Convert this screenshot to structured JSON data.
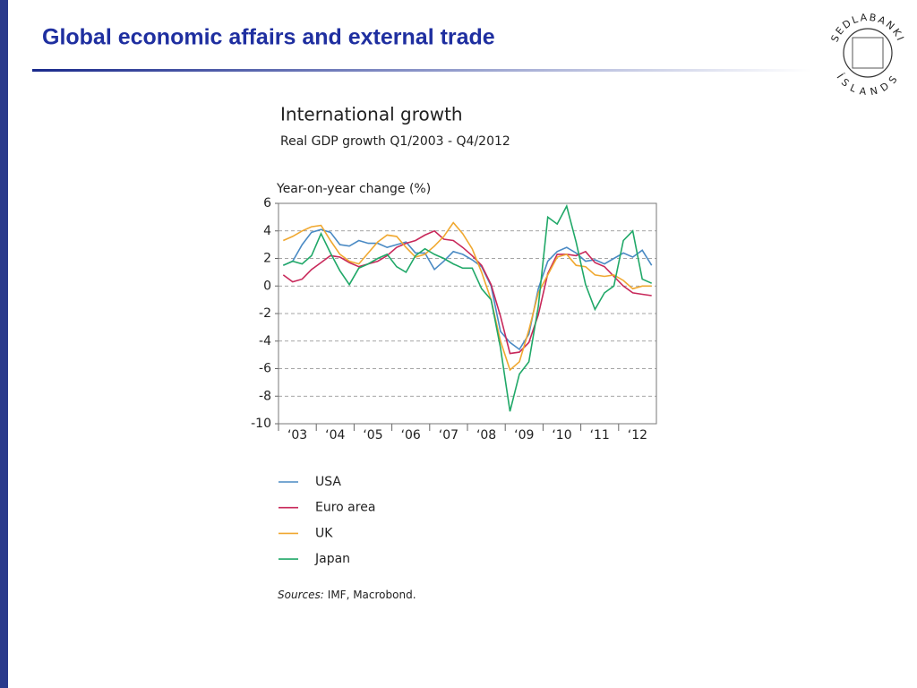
{
  "slide_title": "Global economic affairs and external trade",
  "logo": {
    "top": "SEDLABANKI",
    "bottom": "ÍSLANDS"
  },
  "chart_data": {
    "type": "line",
    "title": "International growth",
    "subtitle": "Real GDP growth Q1/2003 - Q4/2012",
    "y_label": "Year-on-year change (%)",
    "categories": [
      "‘03",
      null,
      null,
      null,
      "‘04",
      null,
      null,
      null,
      "‘05",
      null,
      null,
      null,
      "‘06",
      null,
      null,
      null,
      "‘07",
      null,
      null,
      null,
      "‘08",
      null,
      null,
      null,
      "‘09",
      null,
      null,
      null,
      "‘10",
      null,
      null,
      null,
      "‘11",
      null,
      null,
      null,
      "‘12",
      null,
      null,
      null
    ],
    "ylim": [
      -10,
      6
    ],
    "yticks": [
      -10,
      -8,
      -6,
      -4,
      -2,
      0,
      2,
      4,
      6
    ],
    "grid": true,
    "series": [
      {
        "name": "USA",
        "color": "#4a8ac4",
        "values": [
          1.5,
          1.8,
          3.0,
          3.9,
          4.1,
          3.9,
          3.0,
          2.9,
          3.3,
          3.1,
          3.1,
          2.8,
          3.0,
          3.2,
          2.4,
          2.4,
          1.2,
          1.8,
          2.5,
          2.3,
          1.9,
          1.4,
          0.0,
          -3.3,
          -4.1,
          -4.6,
          -3.5,
          -0.2,
          1.8,
          2.5,
          2.8,
          2.4,
          1.8,
          1.9,
          1.6,
          2.0,
          2.4,
          2.1,
          2.6,
          1.5
        ]
      },
      {
        "name": "Euro area",
        "color": "#c8285a",
        "values": [
          0.8,
          0.3,
          0.5,
          1.2,
          1.7,
          2.2,
          2.1,
          1.7,
          1.4,
          1.6,
          1.8,
          2.2,
          2.8,
          3.1,
          3.3,
          3.7,
          4.0,
          3.4,
          3.3,
          2.8,
          2.2,
          1.5,
          0.1,
          -2.2,
          -4.9,
          -4.8,
          -4.1,
          -2.1,
          0.9,
          2.3,
          2.3,
          2.2,
          2.5,
          1.7,
          1.4,
          0.7,
          0.0,
          -0.5,
          -0.6,
          -0.7
        ]
      },
      {
        "name": "UK",
        "color": "#f0a830",
        "values": [
          3.3,
          3.6,
          4.0,
          4.3,
          4.4,
          3.3,
          2.3,
          1.8,
          1.6,
          2.4,
          3.2,
          3.7,
          3.6,
          2.8,
          2.1,
          2.3,
          2.9,
          3.6,
          4.6,
          3.8,
          2.7,
          1.0,
          -1.0,
          -4.0,
          -6.1,
          -5.5,
          -3.2,
          -0.5,
          0.8,
          2.1,
          2.3,
          1.5,
          1.4,
          0.8,
          0.7,
          0.8,
          0.4,
          -0.2,
          0.0,
          0.0
        ]
      },
      {
        "name": "Japan",
        "color": "#20a868",
        "values": [
          1.5,
          1.8,
          1.6,
          2.2,
          3.8,
          2.4,
          1.1,
          0.1,
          1.3,
          1.6,
          2.0,
          2.3,
          1.4,
          1.0,
          2.2,
          2.7,
          2.3,
          2.0,
          1.6,
          1.3,
          1.3,
          -0.2,
          -1.0,
          -4.5,
          -9.1,
          -6.4,
          -5.5,
          -1.5,
          5.0,
          4.5,
          5.8,
          3.2,
          0.1,
          -1.7,
          -0.5,
          0.0,
          3.3,
          4.0,
          0.5,
          0.2
        ]
      }
    ],
    "source_label": "Sources:",
    "source_text": "IMF, Macrobond."
  }
}
